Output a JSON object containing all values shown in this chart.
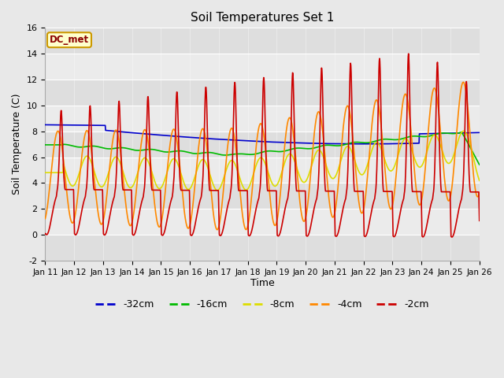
{
  "title": "Soil Temperatures Set 1",
  "xlabel": "Time",
  "ylabel": "Soil Temperature (C)",
  "ylim": [
    -2,
    16
  ],
  "xtick_labels": [
    "Jan 11",
    "Jan 12",
    "Jan 13",
    "Jan 14",
    "Jan 15",
    "Jan 16",
    "Jan 17",
    "Jan 18",
    "Jan 19",
    "Jan 20",
    "Jan 21",
    "Jan 22",
    "Jan 23",
    "Jan 24",
    "Jan 25",
    "Jan 26"
  ],
  "background_color": "#e8e8e8",
  "plot_bg_color": "#f5f5f5",
  "label_box_text": "DC_met",
  "label_box_bg": "#ffffcc",
  "label_box_edge": "#cc9900",
  "series": [
    {
      "name": "-32cm",
      "color": "#0000cc",
      "lw": 1.2
    },
    {
      "name": "-16cm",
      "color": "#00bb00",
      "lw": 1.2
    },
    {
      "name": "-8cm",
      "color": "#dddd00",
      "lw": 1.2
    },
    {
      "name": "-4cm",
      "color": "#ff8800",
      "lw": 1.2
    },
    {
      "name": "-2cm",
      "color": "#cc0000",
      "lw": 1.2
    }
  ],
  "yticks": [
    -2,
    0,
    2,
    4,
    6,
    8,
    10,
    12,
    14,
    16
  ],
  "band_colors": [
    "#e0e0e0",
    "#cccccc",
    "#e0e0e0",
    "#cccccc",
    "#e0e0e0",
    "#cccccc",
    "#e0e0e0",
    "#cccccc",
    "#e0e0e0"
  ]
}
